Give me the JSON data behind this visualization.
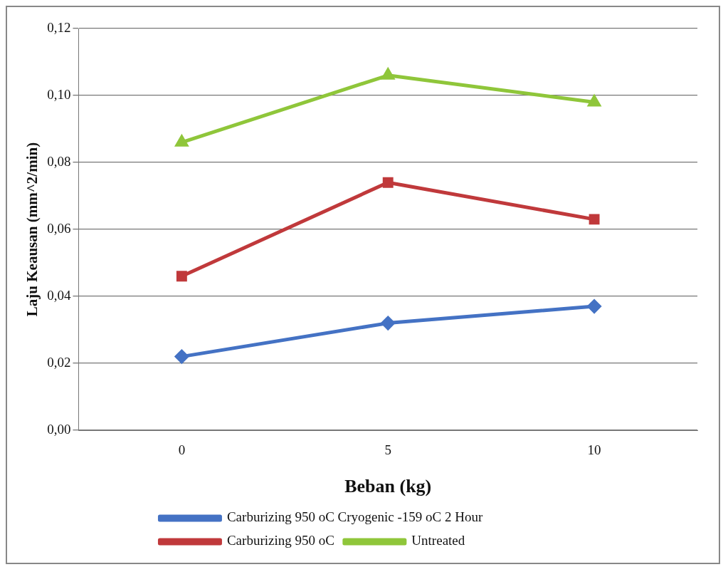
{
  "chart_data": {
    "type": "line",
    "xlabel": "Beban (kg)",
    "ylabel": "Laju Keausan (mm^2/min)",
    "categories": [
      "0",
      "5",
      "10"
    ],
    "ylim": [
      0,
      0.12
    ],
    "yticks": [
      {
        "value": 0,
        "label": "0,00"
      },
      {
        "value": 0.02,
        "label": "0,02"
      },
      {
        "value": 0.04,
        "label": "0,04"
      },
      {
        "value": 0.06,
        "label": "0,06"
      },
      {
        "value": 0.08,
        "label": "0,08"
      },
      {
        "value": 0.1,
        "label": "0,10"
      },
      {
        "value": 0.12,
        "label": "0,12"
      }
    ],
    "grid": "y",
    "legend": "bottom",
    "series": [
      {
        "name": "Carburizing 950 oC Cryogenic -159 oC 2 Hour",
        "color": "#4472c4",
        "marker": "diamond",
        "values": [
          0.022,
          0.032,
          0.037
        ]
      },
      {
        "name": "Carburizing 950 oC",
        "color": "#c0393b",
        "marker": "square",
        "values": [
          0.046,
          0.074,
          0.063
        ]
      },
      {
        "name": "Untreated",
        "color": "#8fc63a",
        "marker": "triangle",
        "values": [
          0.086,
          0.106,
          0.098
        ]
      }
    ]
  }
}
